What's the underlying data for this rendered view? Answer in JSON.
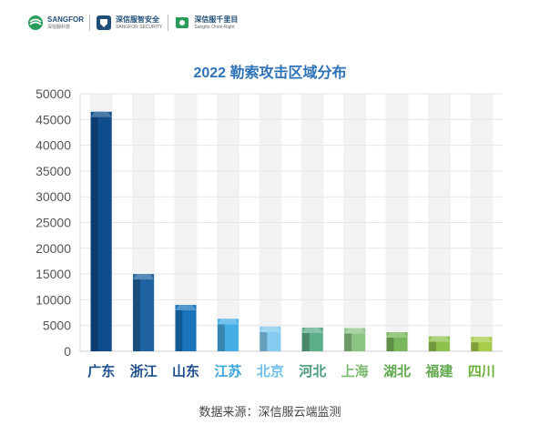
{
  "header": {
    "logos": [
      {
        "name": "SANGFOR",
        "subtitle": "深信服科技"
      },
      {
        "name": "深信服智安全",
        "subtitle": "SANGFOR SECURITY"
      },
      {
        "name": "深信服千里目",
        "subtitle": "Sangfor Omni-Right"
      }
    ]
  },
  "source_note": "数据来源：深信服云端监测",
  "colors": {
    "title": "#2e72b8",
    "axis_text": "#555555",
    "gridline": "#e6e6e6",
    "track": "#f2f2f4"
  },
  "chart_data": {
    "type": "bar",
    "title": "2022 勒索攻击区域分布",
    "xlabel": "",
    "ylabel": "",
    "ylim": [
      0,
      50000
    ],
    "yticks": [
      0,
      5000,
      10000,
      15000,
      20000,
      25000,
      30000,
      35000,
      40000,
      45000,
      50000
    ],
    "grid": true,
    "categories": [
      "广东",
      "浙江",
      "山东",
      "江苏",
      "北京",
      "河北",
      "上海",
      "湖北",
      "福建",
      "四川"
    ],
    "values": [
      46500,
      15000,
      9000,
      6300,
      4800,
      4600,
      4500,
      3700,
      2900,
      2800
    ],
    "bar_colors": [
      "#0f4d8c",
      "#1f63a2",
      "#1a74bb",
      "#45aee6",
      "#84cbef",
      "#5cae8a",
      "#8cc484",
      "#78b75b",
      "#8fc14e",
      "#a7cc4a"
    ],
    "label_colors": [
      "#1f4e8c",
      "#1f4e8c",
      "#1f4e8c",
      "#3aa4df",
      "#6ec1e8",
      "#4a9d7a",
      "#7cba70",
      "#5fa84c",
      "#5fa84c",
      "#6aaf3b"
    ]
  }
}
